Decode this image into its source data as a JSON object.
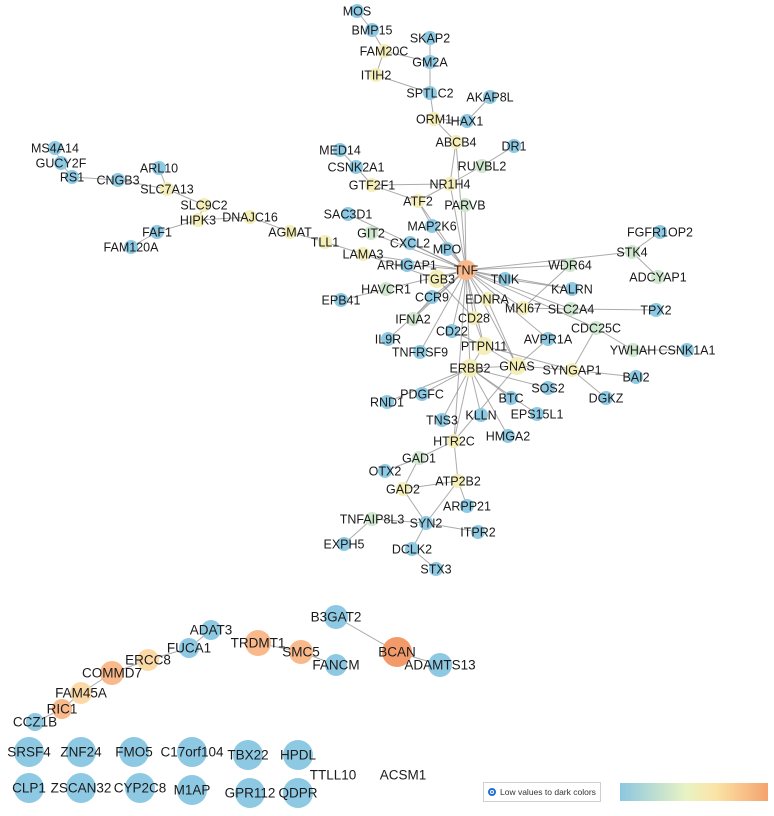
{
  "network": {
    "connected_nodes": [
      {
        "id": "MOS",
        "c": "blue"
      },
      {
        "id": "BMP15",
        "c": "blue"
      },
      {
        "id": "SKAP2",
        "c": "blue"
      },
      {
        "id": "FAM20C",
        "c": "yellow"
      },
      {
        "id": "GM2A",
        "c": "blue"
      },
      {
        "id": "ITIH2",
        "c": "yellow"
      },
      {
        "id": "SPTLC2",
        "c": "blue"
      },
      {
        "id": "AKAP8L",
        "c": "blue"
      },
      {
        "id": "HAX1",
        "c": "blue"
      },
      {
        "id": "ORM1",
        "c": "yellow"
      },
      {
        "id": "ABCB4",
        "c": "yellow"
      },
      {
        "id": "DR1",
        "c": "blue"
      },
      {
        "id": "RUVBL2",
        "c": "green"
      },
      {
        "id": "MED14",
        "c": "blue"
      },
      {
        "id": "CSNK2A1",
        "c": "blue"
      },
      {
        "id": "GTF2F1",
        "c": "yellow"
      },
      {
        "id": "NR1H4",
        "c": "yellow"
      },
      {
        "id": "ATF2",
        "c": "yellow"
      },
      {
        "id": "PARVB",
        "c": "green"
      },
      {
        "id": "MS4A14",
        "c": "blue"
      },
      {
        "id": "GUCY2F",
        "c": "blue"
      },
      {
        "id": "ARL10",
        "c": "blue"
      },
      {
        "id": "RS1",
        "c": "blue"
      },
      {
        "id": "CNGB3",
        "c": "blue"
      },
      {
        "id": "SLC7A13",
        "c": "yellow"
      },
      {
        "id": "SLC9C2",
        "c": "yellow"
      },
      {
        "id": "HIPK3",
        "c": "yellow"
      },
      {
        "id": "DNAJC16",
        "c": "yellow"
      },
      {
        "id": "FAF1",
        "c": "blue"
      },
      {
        "id": "FAM120A",
        "c": "blue"
      },
      {
        "id": "AGMAT",
        "c": "yellow"
      },
      {
        "id": "TLL1",
        "c": "yellow"
      },
      {
        "id": "SAC3D1",
        "c": "blue"
      },
      {
        "id": "GIT2",
        "c": "green"
      },
      {
        "id": "MAP2K6",
        "c": "blue"
      },
      {
        "id": "CXCL2",
        "c": "blue"
      },
      {
        "id": "LAMA3",
        "c": "yellow"
      },
      {
        "id": "MPO",
        "c": "blue"
      },
      {
        "id": "FGFR1OP2",
        "c": "blue"
      },
      {
        "id": "STK4",
        "c": "green"
      },
      {
        "id": "ARHGAP1",
        "c": "blue"
      },
      {
        "id": "TNF",
        "c": "orange"
      },
      {
        "id": "WDR64",
        "c": "green"
      },
      {
        "id": "ADCYAP1",
        "c": "green"
      },
      {
        "id": "ITGB3",
        "c": "yellow"
      },
      {
        "id": "TNIK",
        "c": "blue"
      },
      {
        "id": "HAVCR1",
        "c": "green"
      },
      {
        "id": "KALRN",
        "c": "blue"
      },
      {
        "id": "EPB41",
        "c": "blue"
      },
      {
        "id": "CCR9",
        "c": "blue"
      },
      {
        "id": "EDNRA",
        "c": "yellow"
      },
      {
        "id": "MKI67",
        "c": "yellow"
      },
      {
        "id": "SLC2A4",
        "c": "green"
      },
      {
        "id": "TPX2",
        "c": "blue"
      },
      {
        "id": "IFNA2",
        "c": "green"
      },
      {
        "id": "CD28",
        "c": "yellow"
      },
      {
        "id": "CDC25C",
        "c": "green"
      },
      {
        "id": "CD22",
        "c": "blue"
      },
      {
        "id": "IL9R",
        "c": "blue"
      },
      {
        "id": "AVPR1A",
        "c": "blue"
      },
      {
        "id": "PTPN11",
        "c": "yellow"
      },
      {
        "id": "TNFRSF9",
        "c": "blue"
      },
      {
        "id": "YWHAH",
        "c": "green"
      },
      {
        "id": "CSNK1A1",
        "c": "blue"
      },
      {
        "id": "ERBB2",
        "c": "yellow"
      },
      {
        "id": "GNAS",
        "c": "yellow"
      },
      {
        "id": "SYNGAP1",
        "c": "yellow"
      },
      {
        "id": "BAI2",
        "c": "blue"
      },
      {
        "id": "SOS2",
        "c": "blue"
      },
      {
        "id": "PDGFC",
        "c": "blue"
      },
      {
        "id": "RND1",
        "c": "blue"
      },
      {
        "id": "BTC",
        "c": "blue"
      },
      {
        "id": "DGKZ",
        "c": "blue"
      },
      {
        "id": "EPS15L1",
        "c": "blue"
      },
      {
        "id": "TNS3",
        "c": "blue"
      },
      {
        "id": "KLLN",
        "c": "blue"
      },
      {
        "id": "HMGA2",
        "c": "blue"
      },
      {
        "id": "HTR2C",
        "c": "yellow"
      },
      {
        "id": "GAD1",
        "c": "green"
      },
      {
        "id": "OTX2",
        "c": "blue"
      },
      {
        "id": "ATP2B2",
        "c": "yellow"
      },
      {
        "id": "GAD2",
        "c": "yellow"
      },
      {
        "id": "ARPP21",
        "c": "blue"
      },
      {
        "id": "TNFAIP8L3",
        "c": "green"
      },
      {
        "id": "SYN2",
        "c": "blue"
      },
      {
        "id": "ITPR2",
        "c": "blue"
      },
      {
        "id": "EXPH5",
        "c": "blue"
      },
      {
        "id": "DCLK2",
        "c": "blue"
      },
      {
        "id": "STX3",
        "c": "blue"
      }
    ],
    "cluster_nodes": [
      {
        "id": "B3GAT2",
        "c": "blue"
      },
      {
        "id": "ADAT3",
        "c": "blue"
      },
      {
        "id": "TRDMT1",
        "c": "orange"
      },
      {
        "id": "BCAN",
        "c": "deep"
      },
      {
        "id": "FUCA1",
        "c": "blue"
      },
      {
        "id": "SMC5",
        "c": "orange"
      },
      {
        "id": "ERCC8",
        "c": "peach"
      },
      {
        "id": "FANCM",
        "c": "blue"
      },
      {
        "id": "ADAMTS13",
        "c": "blue"
      },
      {
        "id": "COMMD7",
        "c": "orange"
      },
      {
        "id": "FAM45A",
        "c": "peach"
      },
      {
        "id": "RIC1",
        "c": "orange"
      },
      {
        "id": "CCZ1B",
        "c": "blue"
      }
    ],
    "singletons": [
      {
        "id": "SRSF4"
      },
      {
        "id": "ZNF24"
      },
      {
        "id": "FMO5"
      },
      {
        "id": "C17orf104"
      },
      {
        "id": "TBX22"
      },
      {
        "id": "HPDL"
      },
      {
        "id": "CLP1"
      },
      {
        "id": "ZSCAN32"
      },
      {
        "id": "CYP2C8"
      },
      {
        "id": "M1AP"
      },
      {
        "id": "GPR112"
      },
      {
        "id": "QDPR"
      }
    ],
    "text_only": [
      "TTLL10",
      "ACSM1"
    ]
  },
  "colors": {
    "blue": "#8ec9e3",
    "green": "#cfe6cf",
    "yellow": "#f4eeb8",
    "peach": "#fbd9a6",
    "orange": "#f9b98a",
    "deep": "#f39a6a",
    "edge": "#8f8f8f"
  },
  "legend": {
    "option_label": "Low values to dark colors"
  }
}
